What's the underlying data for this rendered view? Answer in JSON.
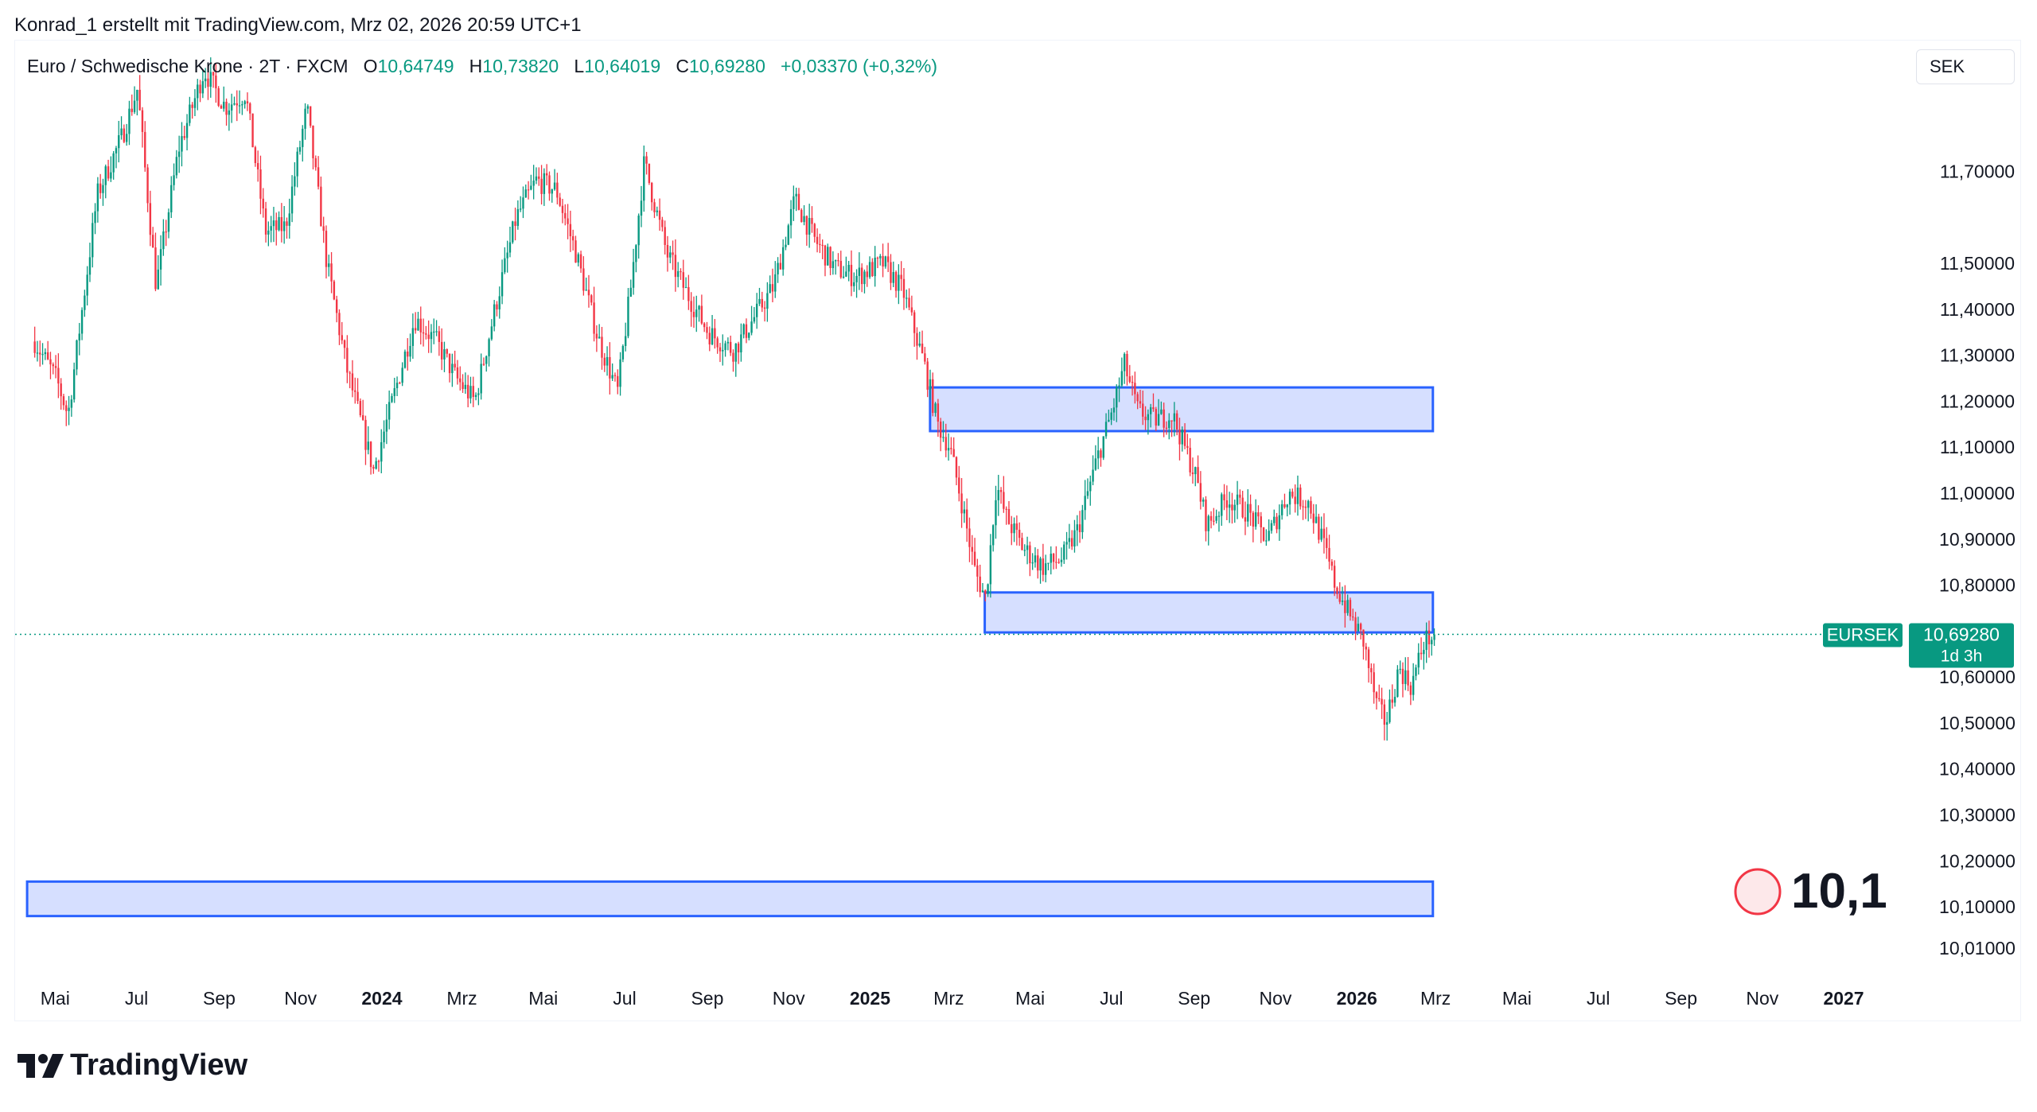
{
  "header": {
    "credit": "Konrad_1 erstellt mit TradingView.com, Mrz 02, 2026 20:59 UTC+1"
  },
  "legend": {
    "symbol": "Euro / Schwedische Krone · 2T · FXCM",
    "o_label": "O",
    "o_value": "10,64749",
    "h_label": "H",
    "h_value": "10,73820",
    "l_label": "L",
    "l_value": "10,64019",
    "c_label": "C",
    "c_value": "10,69280",
    "change": "+0,03370 (+0,32%)"
  },
  "currency": "SEK",
  "price_tag": {
    "symbol": "EURSEK",
    "price": "10,69280",
    "countdown": "1d 3h"
  },
  "annotation": {
    "text": "10,1"
  },
  "brand": {
    "name": "TradingView"
  },
  "colors": {
    "up": "#089981",
    "down": "#f23645",
    "zone_fill": "#d1dcff",
    "zone_stroke": "#2962ff",
    "annotation_stroke": "#f23645",
    "annotation_fill": "#fde8ea"
  },
  "chart_data": {
    "type": "candlestick",
    "title": "Euro / Schwedische Krone · 2T · FXCM",
    "y_axis": {
      "position": "right",
      "ticks": [
        11.7,
        11.5,
        11.4,
        11.3,
        11.2,
        11.1,
        11.0,
        10.9,
        10.8,
        10.6,
        10.5,
        10.4,
        10.3,
        10.2,
        10.1,
        10.01
      ],
      "tick_labels": [
        "11,70000",
        "11,50000",
        "11,40000",
        "11,30000",
        "11,20000",
        "11,10000",
        "11,00000",
        "10,90000",
        "10,80000",
        "10,60000",
        "10,50000",
        "10,40000",
        "10,30000",
        "10,20000",
        "10,10000",
        "10,01000"
      ],
      "range": [
        9.96,
        11.95
      ]
    },
    "x_axis": {
      "labels": [
        {
          "date": "2023-05",
          "text": "Mai",
          "bold": false
        },
        {
          "date": "2023-07",
          "text": "Jul",
          "bold": false
        },
        {
          "date": "2023-09",
          "text": "Sep",
          "bold": false
        },
        {
          "date": "2023-11",
          "text": "Nov",
          "bold": false
        },
        {
          "date": "2024-01",
          "text": "2024",
          "bold": true
        },
        {
          "date": "2024-03",
          "text": "Mrz",
          "bold": false
        },
        {
          "date": "2024-05",
          "text": "Mai",
          "bold": false
        },
        {
          "date": "2024-07",
          "text": "Jul",
          "bold": false
        },
        {
          "date": "2024-09",
          "text": "Sep",
          "bold": false
        },
        {
          "date": "2024-11",
          "text": "Nov",
          "bold": false
        },
        {
          "date": "2025-01",
          "text": "2025",
          "bold": true
        },
        {
          "date": "2025-03",
          "text": "Mrz",
          "bold": false
        },
        {
          "date": "2025-05",
          "text": "Mai",
          "bold": false
        },
        {
          "date": "2025-07",
          "text": "Jul",
          "bold": false
        },
        {
          "date": "2025-09",
          "text": "Sep",
          "bold": false
        },
        {
          "date": "2025-11",
          "text": "Nov",
          "bold": false
        },
        {
          "date": "2026-01",
          "text": "2026",
          "bold": true
        },
        {
          "date": "2026-03",
          "text": "Mrz",
          "bold": false
        },
        {
          "date": "2026-05",
          "text": "Mai",
          "bold": false
        },
        {
          "date": "2026-07",
          "text": "Jul",
          "bold": false
        },
        {
          "date": "2026-09",
          "text": "Sep",
          "bold": false
        },
        {
          "date": "2026-11",
          "text": "Nov",
          "bold": false
        },
        {
          "date": "2027-01",
          "text": "2027",
          "bold": true
        }
      ]
    },
    "last_price": 10.6928,
    "price_path": [
      [
        "2023-04-15",
        11.33
      ],
      [
        "2023-05-01",
        11.25
      ],
      [
        "2023-05-10",
        11.17
      ],
      [
        "2023-06-01",
        11.65
      ],
      [
        "2023-06-20",
        11.78
      ],
      [
        "2023-07-01",
        11.88
      ],
      [
        "2023-07-15",
        11.45
      ],
      [
        "2023-08-01",
        11.75
      ],
      [
        "2023-08-20",
        11.92
      ],
      [
        "2023-09-05",
        11.84
      ],
      [
        "2023-09-20",
        11.87
      ],
      [
        "2023-10-05",
        11.57
      ],
      [
        "2023-10-20",
        11.58
      ],
      [
        "2023-11-05",
        11.84
      ],
      [
        "2023-11-20",
        11.5
      ],
      [
        "2023-12-05",
        11.27
      ],
      [
        "2023-12-25",
        11.05
      ],
      [
        "2024-01-10",
        11.22
      ],
      [
        "2024-01-25",
        11.38
      ],
      [
        "2024-02-10",
        11.33
      ],
      [
        "2024-02-25",
        11.25
      ],
      [
        "2024-03-10",
        11.2
      ],
      [
        "2024-03-25",
        11.4
      ],
      [
        "2024-04-10",
        11.6
      ],
      [
        "2024-04-25",
        11.68
      ],
      [
        "2024-05-10",
        11.66
      ],
      [
        "2024-05-25",
        11.52
      ],
      [
        "2024-06-10",
        11.34
      ],
      [
        "2024-06-25",
        11.22
      ],
      [
        "2024-07-05",
        11.45
      ],
      [
        "2024-07-15",
        11.72
      ],
      [
        "2024-08-01",
        11.52
      ],
      [
        "2024-08-15",
        11.44
      ],
      [
        "2024-09-01",
        11.35
      ],
      [
        "2024-09-20",
        11.31
      ],
      [
        "2024-10-05",
        11.38
      ],
      [
        "2024-10-20",
        11.45
      ],
      [
        "2024-11-05",
        11.64
      ],
      [
        "2024-11-20",
        11.55
      ],
      [
        "2024-12-05",
        11.49
      ],
      [
        "2024-12-20",
        11.47
      ],
      [
        "2025-01-10",
        11.5
      ],
      [
        "2025-01-25",
        11.44
      ],
      [
        "2025-02-10",
        11.28
      ],
      [
        "2025-02-20",
        11.15
      ],
      [
        "2025-03-01",
        11.1
      ],
      [
        "2025-03-10",
        10.98
      ],
      [
        "2025-03-20",
        10.83
      ],
      [
        "2025-03-28",
        10.77
      ],
      [
        "2025-04-05",
        11.02
      ],
      [
        "2025-04-12",
        10.95
      ],
      [
        "2025-04-25",
        10.88
      ],
      [
        "2025-05-10",
        10.84
      ],
      [
        "2025-05-25",
        10.86
      ],
      [
        "2025-06-05",
        10.92
      ],
      [
        "2025-06-20",
        11.08
      ],
      [
        "2025-07-01",
        11.18
      ],
      [
        "2025-07-10",
        11.28
      ],
      [
        "2025-07-20",
        11.18
      ],
      [
        "2025-08-01",
        11.16
      ],
      [
        "2025-08-15",
        11.17
      ],
      [
        "2025-09-01",
        11.04
      ],
      [
        "2025-09-10",
        10.93
      ],
      [
        "2025-09-25",
        10.99
      ],
      [
        "2025-10-10",
        10.96
      ],
      [
        "2025-10-25",
        10.9
      ],
      [
        "2025-11-10",
        11.0
      ],
      [
        "2025-11-25",
        10.98
      ],
      [
        "2025-12-05",
        10.9
      ],
      [
        "2025-12-15",
        10.8
      ],
      [
        "2025-12-25",
        10.74
      ],
      [
        "2026-01-05",
        10.68
      ],
      [
        "2026-01-15",
        10.54
      ],
      [
        "2026-01-22",
        10.5
      ],
      [
        "2026-02-01",
        10.62
      ],
      [
        "2026-02-10",
        10.58
      ],
      [
        "2026-02-20",
        10.68
      ],
      [
        "2026-02-28",
        10.69
      ]
    ],
    "zones": [
      {
        "start": "2025-02-15",
        "end": "2026-02-27",
        "low": 11.135,
        "high": 11.23
      },
      {
        "start": "2025-03-28",
        "end": "2026-02-27",
        "low": 10.697,
        "high": 10.784
      },
      {
        "start": "2023-04-10",
        "end": "2026-02-27",
        "low": 10.08,
        "high": 10.155
      }
    ]
  }
}
